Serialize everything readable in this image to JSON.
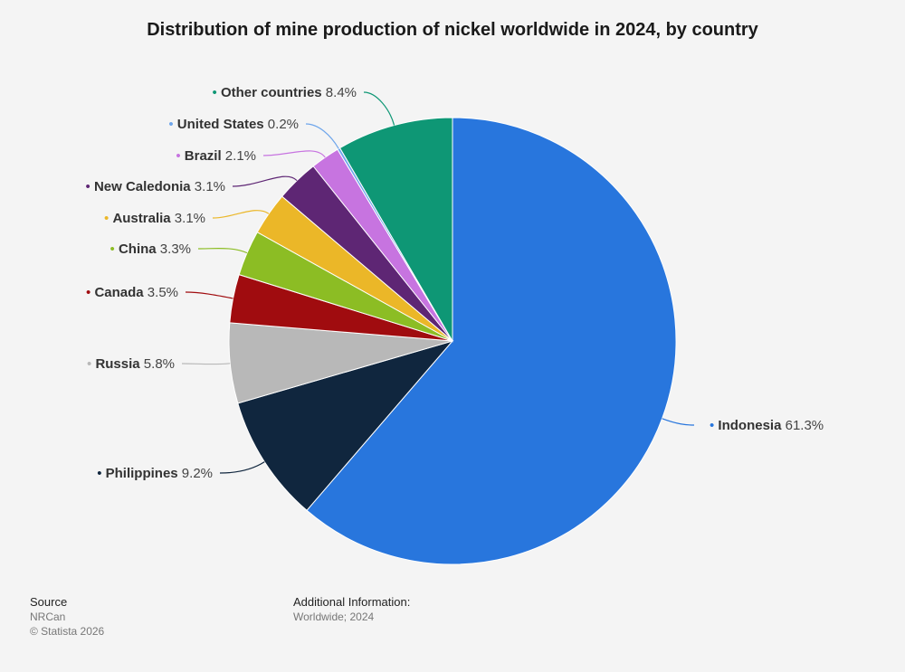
{
  "title": "Distribution of mine production of nickel worldwide in 2024, by country",
  "chart_data": {
    "type": "pie",
    "title": "Distribution of mine production of nickel worldwide in 2024, by country",
    "slices": [
      {
        "label": "Indonesia",
        "value": 61.3,
        "display": "61.3%",
        "color": "#2876dd"
      },
      {
        "label": "Philippines",
        "value": 9.2,
        "display": "9.2%",
        "color": "#10263e"
      },
      {
        "label": "Russia",
        "value": 5.8,
        "display": "5.8%",
        "color": "#b8b8b8"
      },
      {
        "label": "Canada",
        "value": 3.5,
        "display": "3.5%",
        "color": "#a00c0f"
      },
      {
        "label": "China",
        "value": 3.3,
        "display": "3.3%",
        "color": "#8cbd24"
      },
      {
        "label": "Australia",
        "value": 3.1,
        "display": "3.1%",
        "color": "#ebb728"
      },
      {
        "label": "New Caledonia",
        "value": 3.1,
        "display": "3.1%",
        "color": "#5e2674"
      },
      {
        "label": "Brazil",
        "value": 2.1,
        "display": "2.1%",
        "color": "#c774e0"
      },
      {
        "label": "United States",
        "value": 0.2,
        "display": "0.2%",
        "color": "#6fa6eb"
      },
      {
        "label": "Other countries",
        "value": 8.4,
        "display": "8.4%",
        "color": "#0e9775"
      }
    ]
  },
  "footer": {
    "source_heading": "Source",
    "source_name": "NRCan",
    "copyright": "© Statista 2026",
    "info_heading": "Additional Information:",
    "info_text": "Worldwide; 2024"
  }
}
